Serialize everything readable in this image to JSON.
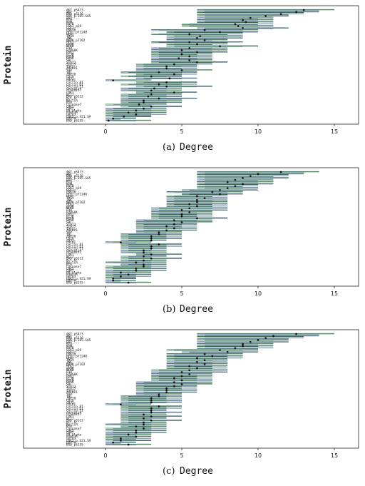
{
  "colors": {
    "dark": "#1f4a40",
    "mid": "#2f6b57",
    "light": "#6fbf73",
    "steel": "#5a6f8f",
    "blue": "#7f8fc8",
    "point": "#111111"
  },
  "chart_data": [
    {
      "type": "interval",
      "caption": "(a)",
      "xlabel": "Degree",
      "ylabel": "Protein",
      "xlim": [
        -1.5,
        17
      ],
      "ticks": [
        0,
        5,
        10,
        15
      ],
      "tick_labels": [
        "0",
        "5",
        "10",
        "15"
      ],
      "proteins": [
        "AKT_pS473",
        "AKT",
        "BAD_pS136",
        "BAK_p.S65.S65",
        "BAX_...",
        "BID",
        "BIM",
        "EGFR",
        "GSK3_pS9",
        "GSK3",
        "GSK3B",
        "HER2_pY1248",
        "HER2",
        "IRS1",
        "JNK",
        "MAPK_pT202",
        "MEK1",
        "mTOR",
        "NFKB",
        "P38",
        "P70S6K",
        "PDK1",
        "PI3K",
        "PTEN",
        "RPS6",
        "SRC",
        "STAT3",
        "STAT5",
        "TSC2",
        "X4EBP1",
        "YAP",
        "YB1",
        "ZAP70",
        "CD20",
        "CD31",
        "COLVI",
        "Cyclin_B1",
        "Cyclin_D1",
        "Cyclin_E1",
        "Caveolin",
        "Claudin7",
        "CDK1",
        "Bcl2",
        "BAD_pS112",
        "Bcl.xL",
        "Beclin",
        "Bim",
        "Caspase7",
        "CHK1",
        "CHK2",
        "ER_alpha",
        "FOXO3A",
        "GATA3",
        "GSK3_p.S21.S9",
        "HSP70",
        "BAD_pS155"
      ],
      "point_values": [
        13,
        12.5,
        11.5,
        10.5,
        9.5,
        9,
        9.2,
        8.5,
        8.7,
        9,
        6.5,
        7.5,
        5.5,
        6.2,
        6,
        6.5,
        5.5,
        6,
        7.5,
        5.5,
        5,
        6,
        5,
        5.5,
        4.8,
        5.5,
        6,
        4.5,
        4,
        4,
        5,
        3.5,
        4.5,
        3,
        4.2,
        0.5,
        4,
        3.5,
        4,
        3.2,
        3,
        4.5,
        3,
        2.8,
        3.5,
        2.5,
        2.5,
        2.2,
        3,
        2.5,
        2,
        1.5,
        2,
        1.2,
        0.5,
        0.2
      ],
      "intervals": [
        [
          6,
          15
        ],
        [
          6,
          14
        ],
        [
          6,
          13
        ],
        [
          6,
          12
        ],
        [
          6,
          11
        ],
        [
          6,
          11
        ],
        [
          6,
          11
        ],
        [
          5,
          11
        ],
        [
          5,
          11
        ],
        [
          6,
          12
        ],
        [
          3,
          10
        ],
        [
          4,
          10
        ],
        [
          3,
          9
        ],
        [
          4,
          9
        ],
        [
          4,
          9
        ],
        [
          4,
          8
        ],
        [
          3,
          9
        ],
        [
          4,
          8
        ],
        [
          4,
          10
        ],
        [
          3,
          8
        ],
        [
          3,
          8
        ],
        [
          3,
          8
        ],
        [
          3,
          7
        ],
        [
          3,
          7
        ],
        [
          3,
          7
        ],
        [
          3,
          7
        ],
        [
          3,
          8
        ],
        [
          2,
          7
        ],
        [
          2,
          6
        ],
        [
          2,
          6
        ],
        [
          2,
          7
        ],
        [
          1,
          6
        ],
        [
          2,
          6
        ],
        [
          1,
          5
        ],
        [
          2,
          6
        ],
        [
          0,
          3
        ],
        [
          2,
          6
        ],
        [
          1,
          6
        ],
        [
          2,
          7
        ],
        [
          1,
          5
        ],
        [
          1,
          5
        ],
        [
          2,
          6
        ],
        [
          1,
          5
        ],
        [
          1,
          5
        ],
        [
          1,
          6
        ],
        [
          1,
          5
        ],
        [
          1,
          5
        ],
        [
          0,
          4
        ],
        [
          1,
          5
        ],
        [
          0,
          4
        ],
        [
          0,
          4
        ],
        [
          0,
          4
        ],
        [
          0,
          4
        ],
        [
          0,
          3
        ],
        [
          0,
          2
        ],
        [
          0,
          3
        ]
      ]
    },
    {
      "type": "interval",
      "caption": "(b)",
      "xlabel": "Degree",
      "ylabel": "Protein",
      "xlim": [
        -1.5,
        17
      ],
      "ticks": [
        0,
        5,
        10,
        15
      ],
      "tick_labels": [
        "0",
        "5",
        "10",
        "15"
      ],
      "proteins": [
        "AKT_pS473",
        "AKT",
        "BAD_pS136",
        "BAK_p.S65.S65",
        "BAX_...",
        "BID",
        "BIM",
        "EGFR",
        "GSK3_pS9",
        "GSK3",
        "GSK3B",
        "HER2_pY1248",
        "HER2",
        "IRS1",
        "JNK",
        "MAPK_pT202",
        "MEK1",
        "mTOR",
        "NFKB",
        "P38",
        "P70S6K",
        "PDK1",
        "PI3K",
        "PTEN",
        "RPS6",
        "SRC",
        "STAT3",
        "STAT5",
        "TSC2",
        "X4EBP1",
        "YAP",
        "YB1",
        "ZAP70",
        "CD20",
        "CD31",
        "COLVI",
        "Cyclin_B1",
        "Cyclin_D1",
        "Cyclin_E1",
        "Caveolin",
        "Claudin7",
        "CDK1",
        "Bcl2",
        "BAD_pS112",
        "Bcl.xL",
        "Beclin",
        "Bim",
        "Caspase7",
        "CHK1",
        "CHK2",
        "ER_alpha",
        "FOXO3A",
        "GATA3",
        "GSK3_p.S21.S9",
        "HSP70",
        "BAD_pS155"
      ],
      "point_values": [
        11.5,
        10,
        9.5,
        9,
        8.5,
        8,
        9,
        8.5,
        8,
        7.5,
        7,
        7.5,
        6,
        6.5,
        6,
        6,
        5.5,
        6,
        5.5,
        5,
        5.5,
        5,
        5,
        6,
        4.5,
        5,
        4.5,
        4,
        4.5,
        4,
        3.5,
        3.5,
        3,
        3,
        3,
        1,
        3.5,
        3,
        3,
        2.5,
        2.5,
        3,
        2.5,
        3,
        2.5,
        2,
        2.5,
        2.5,
        2,
        2,
        1,
        1.5,
        1,
        0.5,
        0.5,
        1.5
      ],
      "intervals": [
        [
          6,
          14
        ],
        [
          6,
          13
        ],
        [
          6,
          12
        ],
        [
          6,
          12
        ],
        [
          6,
          11
        ],
        [
          6,
          11
        ],
        [
          6,
          11
        ],
        [
          6,
          10
        ],
        [
          6,
          10
        ],
        [
          5,
          10
        ],
        [
          4,
          9
        ],
        [
          5,
          9
        ],
        [
          4,
          8
        ],
        [
          4,
          8
        ],
        [
          4,
          8
        ],
        [
          4,
          8
        ],
        [
          4,
          8
        ],
        [
          4,
          8
        ],
        [
          3,
          8
        ],
        [
          3,
          8
        ],
        [
          3,
          7
        ],
        [
          3,
          7
        ],
        [
          3,
          7
        ],
        [
          3,
          8
        ],
        [
          2,
          7
        ],
        [
          2,
          7
        ],
        [
          2,
          6
        ],
        [
          2,
          6
        ],
        [
          2,
          6
        ],
        [
          2,
          6
        ],
        [
          2,
          5
        ],
        [
          1,
          5
        ],
        [
          1,
          5
        ],
        [
          1,
          5
        ],
        [
          1,
          4
        ],
        [
          0,
          3
        ],
        [
          1,
          5
        ],
        [
          1,
          5
        ],
        [
          1,
          4
        ],
        [
          1,
          4
        ],
        [
          1,
          4
        ],
        [
          2,
          5
        ],
        [
          1,
          4
        ],
        [
          1,
          5
        ],
        [
          1,
          4
        ],
        [
          0,
          4
        ],
        [
          1,
          4
        ],
        [
          0,
          4
        ],
        [
          0,
          4
        ],
        [
          0,
          4
        ],
        [
          0,
          3
        ],
        [
          0,
          3
        ],
        [
          0,
          3
        ],
        [
          0,
          2
        ],
        [
          0,
          2
        ],
        [
          0,
          3
        ]
      ]
    },
    {
      "type": "interval",
      "caption": "(c)",
      "xlabel": "Degree",
      "ylabel": "Protein",
      "xlim": [
        -1.5,
        17
      ],
      "ticks": [
        0,
        5,
        10,
        15
      ],
      "tick_labels": [
        "0",
        "5",
        "10",
        "15"
      ],
      "proteins": [
        "AKT_pS473",
        "AKT",
        "BAD_pS136",
        "BAK_p.S65.S65",
        "BAX_...",
        "BID",
        "BIM",
        "EGFR",
        "GSK3_pS9",
        "GSK3",
        "GSK3B",
        "HER2_pY1248",
        "HER2",
        "IRS1",
        "JNK",
        "MAPK_pT202",
        "MEK1",
        "mTOR",
        "NFKB",
        "P38",
        "P70S6K",
        "PDK1",
        "PI3K",
        "PTEN",
        "RPS6",
        "SRC",
        "STAT3",
        "STAT5",
        "TSC2",
        "X4EBP1",
        "YAP",
        "YB1",
        "ZAP70",
        "CD20",
        "CD31",
        "COLVI",
        "Cyclin_B1",
        "Cyclin_D1",
        "Cyclin_E1",
        "Caveolin",
        "Claudin7",
        "CDK1",
        "Bcl2",
        "BAD_pS112",
        "Bcl.xL",
        "Beclin",
        "Bim",
        "Caspase7",
        "CHK1",
        "CHK2",
        "ER_alpha",
        "FOXO3A",
        "GATA3",
        "GSK3_p.S21.S9",
        "HSP70",
        "BAD_pS155"
      ],
      "point_values": [
        12.5,
        11,
        10.5,
        10,
        9.5,
        9,
        9,
        8.5,
        7.5,
        8,
        6.5,
        7,
        6,
        6.5,
        6,
        6.5,
        5.5,
        6,
        5.5,
        5,
        5.5,
        5,
        4.5,
        5,
        4.5,
        5,
        4.5,
        4,
        4,
        4,
        3.5,
        3.5,
        3,
        3,
        3,
        1,
        3.5,
        3,
        3,
        3,
        2.5,
        3,
        2.5,
        3,
        2.5,
        2.5,
        2,
        2.5,
        2,
        2,
        1.5,
        2,
        1,
        1,
        0.5,
        1.5
      ],
      "intervals": [
        [
          6,
          15
        ],
        [
          6,
          14
        ],
        [
          6,
          13
        ],
        [
          6,
          12
        ],
        [
          6,
          12
        ],
        [
          6,
          11
        ],
        [
          6,
          11
        ],
        [
          6,
          11
        ],
        [
          4,
          10
        ],
        [
          5,
          10
        ],
        [
          4,
          9
        ],
        [
          4,
          9
        ],
        [
          4,
          9
        ],
        [
          4,
          8
        ],
        [
          4,
          8
        ],
        [
          4,
          8
        ],
        [
          4,
          8
        ],
        [
          4,
          8
        ],
        [
          3,
          8
        ],
        [
          3,
          8
        ],
        [
          3,
          7
        ],
        [
          3,
          7
        ],
        [
          3,
          7
        ],
        [
          3,
          7
        ],
        [
          2,
          7
        ],
        [
          2,
          7
        ],
        [
          2,
          6
        ],
        [
          2,
          6
        ],
        [
          2,
          6
        ],
        [
          2,
          6
        ],
        [
          2,
          5
        ],
        [
          1,
          5
        ],
        [
          1,
          5
        ],
        [
          1,
          5
        ],
        [
          1,
          5
        ],
        [
          0,
          3
        ],
        [
          1,
          5
        ],
        [
          1,
          5
        ],
        [
          1,
          4
        ],
        [
          1,
          5
        ],
        [
          1,
          4
        ],
        [
          1,
          5
        ],
        [
          1,
          4
        ],
        [
          1,
          5
        ],
        [
          1,
          4
        ],
        [
          0,
          4
        ],
        [
          1,
          4
        ],
        [
          0,
          4
        ],
        [
          0,
          4
        ],
        [
          0,
          4
        ],
        [
          0,
          3
        ],
        [
          0,
          3
        ],
        [
          0,
          3
        ],
        [
          0,
          3
        ],
        [
          0,
          2
        ],
        [
          0,
          3
        ]
      ]
    }
  ]
}
